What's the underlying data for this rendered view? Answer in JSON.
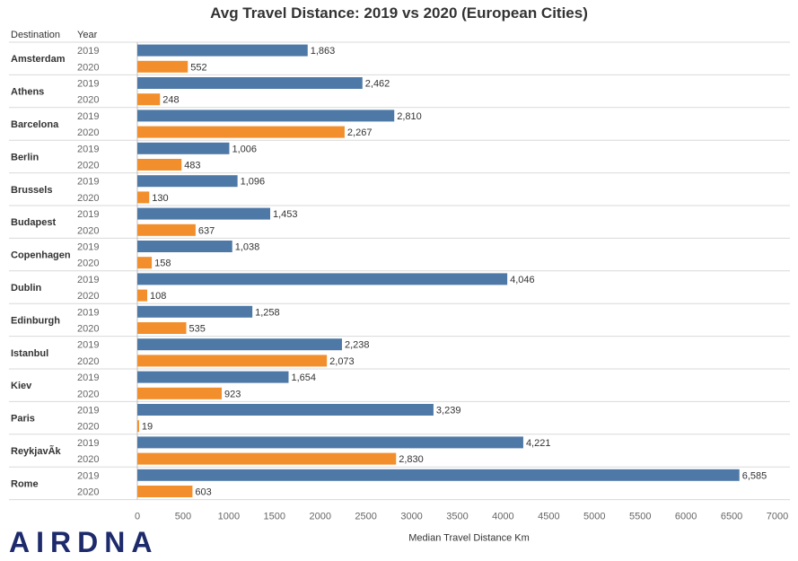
{
  "chart_data": {
    "type": "bar",
    "orientation": "horizontal",
    "title": "Avg Travel Distance: 2019 vs 2020 (European Cities)",
    "row_header_1": "Destination",
    "row_header_2": "Year",
    "xlabel": "Median Travel Distance Km",
    "xlim": [
      0,
      7000
    ],
    "xticks": [
      "0",
      "500",
      "1000",
      "1500",
      "2000",
      "2500",
      "3000",
      "3500",
      "4000",
      "4500",
      "5000",
      "5500",
      "6000",
      "6500",
      "7000"
    ],
    "years": [
      "2019",
      "2020"
    ],
    "categories": [
      "Amsterdam",
      "Athens",
      "Barcelona",
      "Berlin",
      "Brussels",
      "Budapest",
      "Copenhagen",
      "Dublin",
      "Edinburgh",
      "Istanbul",
      "Kiev",
      "Paris",
      "ReykjavÃk",
      "Rome"
    ],
    "series": [
      {
        "values": [
          1863,
          2462,
          2810,
          1006,
          1096,
          1453,
          1038,
          4046,
          1258,
          2238,
          1654,
          3239,
          4221,
          6585
        ],
        "labels": [
          "1,863",
          "2,462",
          "2,810",
          "1,006",
          "1,096",
          "1,453",
          "1,038",
          "4,046",
          "1,258",
          "2,238",
          "1,654",
          "3,239",
          "4,221",
          "6,585"
        ],
        "color": "#4e79a7"
      },
      {
        "values": [
          552,
          248,
          2267,
          483,
          130,
          637,
          158,
          108,
          535,
          2073,
          923,
          19,
          2830,
          603
        ],
        "labels": [
          "552",
          "248",
          "2,267",
          "483",
          "130",
          "637",
          "158",
          "108",
          "535",
          "2,073",
          "923",
          "19",
          "2,830",
          "603"
        ],
        "color": "#f28e2b"
      }
    ],
    "grid": false
  },
  "logo": {
    "text": "AIRDNA",
    "color": "#1d2a6b"
  }
}
